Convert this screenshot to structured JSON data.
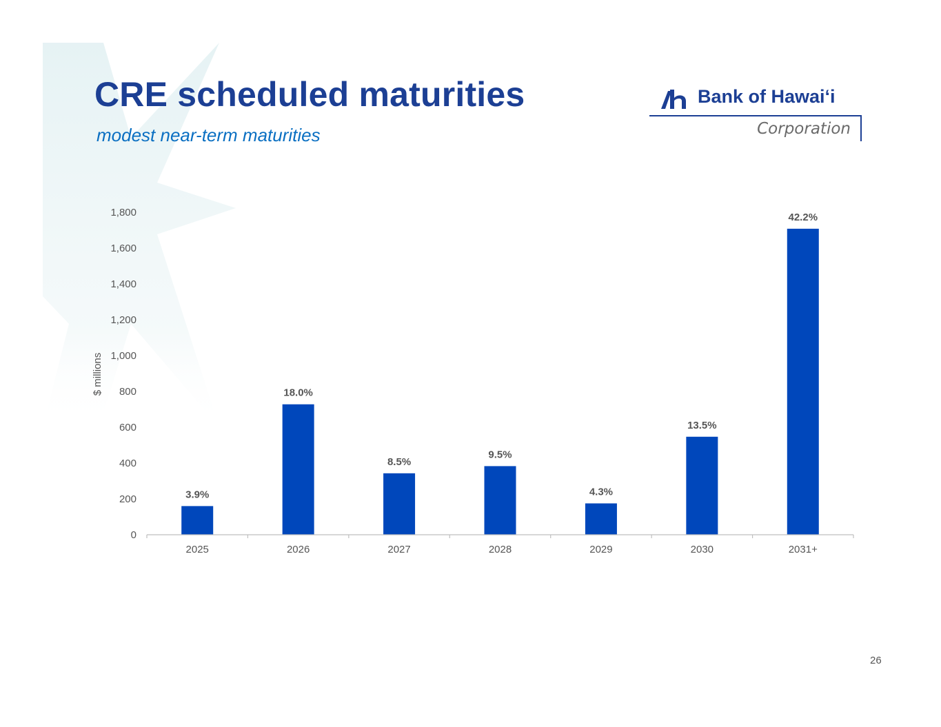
{
  "slide": {
    "title": "CRE scheduled maturities",
    "subtitle": "modest near-term maturities",
    "page_number": "26"
  },
  "logo": {
    "name": "Bank of Hawaiʻi",
    "sub": "Corporation"
  },
  "colors": {
    "title": "#1c3f94",
    "subtitle": "#0a6fc2",
    "bar": "#0047bb",
    "text": "#555555",
    "axis": "#bfbfbf"
  },
  "chart_data": {
    "type": "bar",
    "title": "",
    "xlabel": "",
    "ylabel": "$ millions",
    "ylim": [
      0,
      1800
    ],
    "yticks": [
      0,
      200,
      400,
      600,
      800,
      1000,
      1200,
      1400,
      1600,
      1800
    ],
    "ytick_labels": [
      "0",
      "200",
      "400",
      "600",
      "800",
      "1,000",
      "1,200",
      "1,400",
      "1,600",
      "1,800"
    ],
    "categories": [
      "2025",
      "2026",
      "2027",
      "2028",
      "2029",
      "2030",
      "2031+"
    ],
    "values": [
      160,
      728,
      343,
      383,
      175,
      547,
      1708
    ],
    "data_labels": [
      "3.9%",
      "18.0%",
      "8.5%",
      "9.5%",
      "4.3%",
      "13.5%",
      "42.2%"
    ],
    "grid": false,
    "legend": "none"
  }
}
